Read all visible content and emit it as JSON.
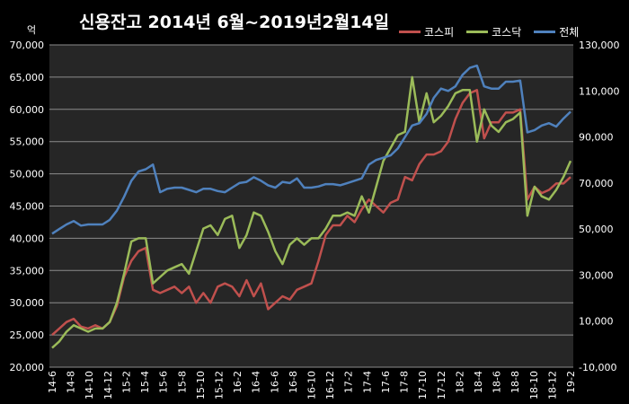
{
  "chart_data": {
    "type": "line",
    "title": "신용잔고 2014년 6월~2019년2월14일",
    "y_unit": "억",
    "x_ticks": [
      "14-6",
      "14-8",
      "14-10",
      "14-12",
      "15-2",
      "15-4",
      "15-6",
      "15-8",
      "15-10",
      "15-12",
      "16-2",
      "16-4",
      "16-6",
      "16-8",
      "16-10",
      "16-12",
      "17-2",
      "17-4",
      "17-6",
      "17-8",
      "17-10",
      "17-12",
      "18-2",
      "18-4",
      "18-6",
      "18-8",
      "18-10",
      "18-12",
      "19-2"
    ],
    "y_left": {
      "ylim": [
        20000,
        70000
      ],
      "ticks": [
        "20,000",
        "25,000",
        "30,000",
        "35,000",
        "40,000",
        "45,000",
        "50,000",
        "55,000",
        "60,000",
        "65,000",
        "70,000"
      ]
    },
    "y_right": {
      "ylim": [
        -10000,
        130000
      ],
      "ticks": [
        "-10,000",
        "10,000",
        "30,000",
        "50,000",
        "70,000",
        "90,000",
        "110,000",
        "130,000"
      ]
    },
    "grid": true,
    "legend_position": "top-right",
    "series": [
      {
        "name": "코스피",
        "color": "#c0504d",
        "axis": "left",
        "values": [
          25000,
          26000,
          27000,
          27500,
          26300,
          26000,
          26500,
          26000,
          27000,
          29500,
          34000,
          36500,
          38000,
          38500,
          32000,
          31500,
          32000,
          32500,
          31500,
          32500,
          30000,
          31500,
          30000,
          32500,
          33000,
          32500,
          31000,
          33500,
          31000,
          33000,
          29000,
          30000,
          31000,
          30500,
          32000,
          32500,
          33000,
          36500,
          40500,
          42000,
          42000,
          43500,
          42500,
          44500,
          46000,
          45000,
          44000,
          45500,
          46000,
          49500,
          49000,
          51500,
          53000,
          53000,
          53500,
          55000,
          58500,
          61000,
          62500,
          63000,
          55500,
          58000,
          58000,
          59500,
          59500,
          60000,
          46000,
          48000,
          47000,
          47500,
          48500,
          48500,
          49500
        ]
      },
      {
        "name": "코스닥",
        "color": "#9bbb59",
        "axis": "left",
        "values": [
          23000,
          24000,
          25500,
          26500,
          26000,
          25500,
          26000,
          26000,
          27000,
          30000,
          34500,
          39500,
          40000,
          40000,
          33000,
          34000,
          35000,
          35500,
          36000,
          34500,
          38000,
          41500,
          42000,
          40500,
          43000,
          43500,
          38500,
          40500,
          44000,
          43500,
          41000,
          38000,
          36000,
          39000,
          40000,
          39000,
          40000,
          40000,
          41500,
          43500,
          43500,
          44000,
          43500,
          46500,
          44000,
          48000,
          52000,
          54000,
          56000,
          56500,
          65000,
          58000,
          62500,
          58000,
          59000,
          60500,
          62500,
          63000,
          63000,
          55000,
          60000,
          57500,
          56500,
          58000,
          58500,
          59500,
          43500,
          48000,
          46500,
          46000,
          47500,
          49500,
          52000
        ]
      },
      {
        "name": "전체",
        "color": "#4f81bd",
        "axis": "right",
        "values": [
          48000,
          50000,
          52000,
          53500,
          51500,
          52000,
          52000,
          52000,
          54000,
          58000,
          64000,
          71000,
          75000,
          76000,
          78000,
          66000,
          67500,
          68000,
          68000,
          67000,
          66000,
          67500,
          67500,
          66500,
          66000,
          68000,
          70000,
          70500,
          72500,
          71000,
          69000,
          68000,
          70500,
          70000,
          72000,
          68000,
          68000,
          68500,
          69500,
          69500,
          69000,
          70000,
          71000,
          72000,
          78000,
          80000,
          81000,
          82000,
          85000,
          90000,
          95000,
          96000,
          100000,
          107000,
          111000,
          110000,
          112000,
          117000,
          120000,
          121000,
          112000,
          111000,
          111000,
          114000,
          114000,
          114500,
          92000,
          93000,
          95000,
          96000,
          94500,
          98000,
          101000
        ]
      }
    ]
  }
}
